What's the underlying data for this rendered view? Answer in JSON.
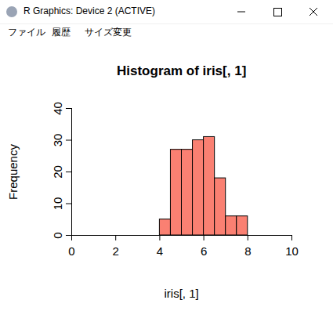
{
  "window": {
    "title": "R Graphics: Device 2 (ACTIVE)",
    "menu": [
      "ファイル",
      "履歴",
      "サイズ変更"
    ]
  },
  "chart_data": {
    "type": "histogram",
    "title": "Histogram of iris[, 1]",
    "x_label": "iris[, 1]",
    "y_label": "Frequency",
    "bins": [
      4,
      4.5,
      5,
      5.5,
      6,
      6.5,
      7,
      7.5,
      8
    ],
    "values": [
      5,
      27,
      27,
      30,
      31,
      18,
      6,
      6
    ],
    "color": "#fa8072",
    "xlim": [
      0,
      10
    ],
    "xticks": [
      0,
      2,
      4,
      6,
      8,
      10
    ],
    "ylim": [
      0,
      40
    ],
    "yticks": [
      0,
      10,
      20,
      30,
      40
    ]
  }
}
